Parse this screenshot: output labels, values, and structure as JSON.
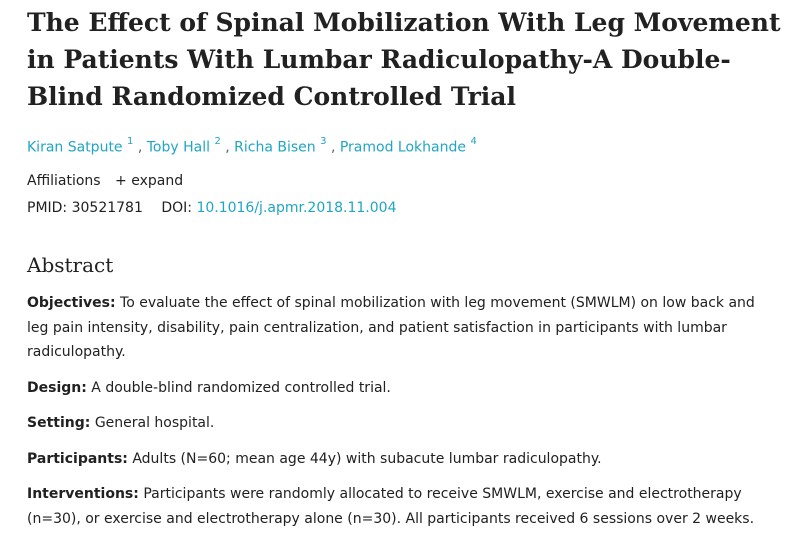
{
  "title": "The Effect of Spinal Mobilization With Leg Movement in Patients With Lumbar Radiculopathy-A Double-Blind Randomized Controlled Trial",
  "authors": [
    {
      "name": "Kiran Satpute",
      "sup": "1"
    },
    {
      "name": "Toby Hall",
      "sup": "2"
    },
    {
      "name": "Richa Bisen",
      "sup": "3"
    },
    {
      "name": "Pramod Lokhande",
      "sup": "4"
    }
  ],
  "affiliations": {
    "label": "Affiliations",
    "expand": "+ expand"
  },
  "ids": {
    "pmid_label": "PMID:",
    "pmid": "30521781",
    "doi_label": "DOI:",
    "doi": "10.1016/j.apmr.2018.11.004"
  },
  "abstract": {
    "heading": "Abstract",
    "sections": [
      {
        "label": "Objectives:",
        "text": "To evaluate the effect of spinal mobilization with leg movement (SMWLM) on low back and leg pain intensity, disability, pain centralization, and patient satisfaction in participants with lumbar radiculopathy."
      },
      {
        "label": "Design:",
        "text": "A double-blind randomized controlled trial."
      },
      {
        "label": "Setting:",
        "text": "General hospital."
      },
      {
        "label": "Participants:",
        "text": "Adults (N=60; mean age 44y) with subacute lumbar radiculopathy."
      },
      {
        "label": "Interventions:",
        "text": "Participants were randomly allocated to receive SMWLM, exercise and electrotherapy (n=30), or exercise and electrotherapy alone (n=30). All participants received 6 sessions over 2 weeks."
      }
    ]
  }
}
